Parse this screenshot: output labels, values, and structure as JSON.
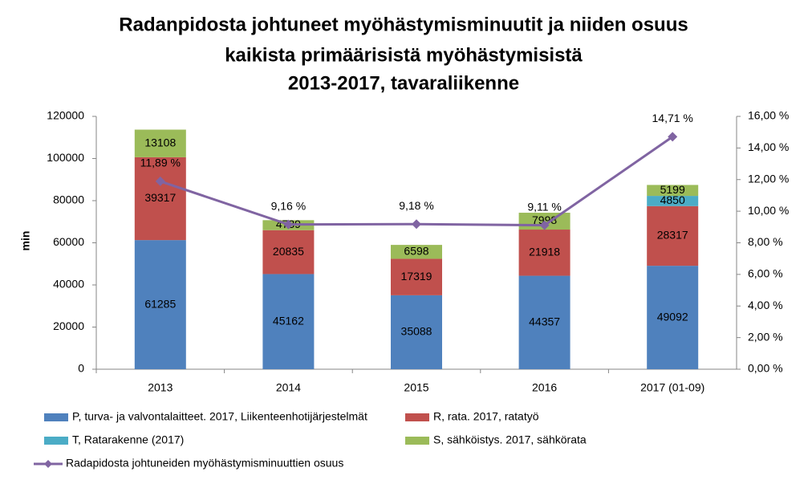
{
  "chart_data": {
    "type": "bar",
    "stacked": true,
    "title": [
      "Radanpidosta johtuneet myöhästymisminuutit  ja niiden osuus",
      "kaikista primäärisistä myöhästymisistä",
      "2013-2017, tavaraliikenne"
    ],
    "y_label": "min",
    "categories": [
      "2013",
      "2014",
      "2015",
      "2016",
      "2017 (01-09)"
    ],
    "series": [
      {
        "name": "P, turva- ja valvontalaitteet. 2017, Liikenteenhotijärjestelmät",
        "color": "#4f81bd",
        "values": [
          61285,
          45162,
          35088,
          44357,
          49092
        ]
      },
      {
        "name": "R, rata. 2017, ratatyö",
        "color": "#c0504d",
        "values": [
          39317,
          20835,
          17319,
          21918,
          28317
        ]
      },
      {
        "name": "T, Ratarakenne (2017)",
        "color": "#4bacc6",
        "values": [
          null,
          null,
          null,
          null,
          4850
        ]
      },
      {
        "name": "S, sähköistys. 2017, sähkörata",
        "color": "#9bbb59",
        "values": [
          13108,
          4739,
          6598,
          7998,
          5199
        ]
      },
      {
        "name": "Radapidosta johtuneiden myöhästymisminuuttien osuus",
        "type": "line",
        "axis": "y2",
        "color": "#8064a2",
        "values": [
          11.89,
          9.16,
          9.18,
          9.11,
          14.71
        ],
        "value_labels": [
          "11,89 %",
          "9,16 %",
          "9,18 %",
          "9,11 %",
          "14,71 %"
        ]
      }
    ],
    "ylim": [
      0,
      120000
    ],
    "yticks": [
      0,
      20000,
      40000,
      60000,
      80000,
      100000,
      120000
    ],
    "y2lim": [
      0,
      16
    ],
    "y2ticks": [
      {
        "value": 0,
        "label": "0,00 %"
      },
      {
        "value": 2,
        "label": "2,00 %"
      },
      {
        "value": 4,
        "label": "4,00 %"
      },
      {
        "value": 6,
        "label": "6,00 %"
      },
      {
        "value": 8,
        "label": "8,00 %"
      },
      {
        "value": 10,
        "label": "10,00 %"
      },
      {
        "value": 12,
        "label": "12,00 %"
      },
      {
        "value": 14,
        "label": "14,00 %"
      },
      {
        "value": 16,
        "label": "16,00 %"
      }
    ],
    "legend": "bottom"
  }
}
